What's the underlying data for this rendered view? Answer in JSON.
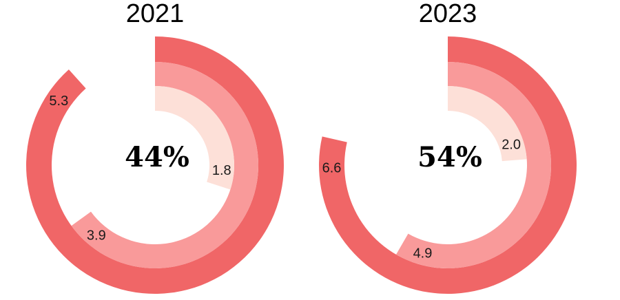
{
  "chart_data": [
    {
      "type": "radial-bar",
      "title": "2021",
      "center_label": "44%",
      "max_value": 6.0,
      "rings": [
        {
          "value": 5.3,
          "label": "5.3",
          "color": "#f06667"
        },
        {
          "value": 3.9,
          "label": "3.9",
          "color": "#f99a9a"
        },
        {
          "value": 1.8,
          "label": "1.8",
          "color": "#fde0d8"
        }
      ]
    },
    {
      "type": "radial-bar",
      "title": "2023",
      "center_label": "54%",
      "max_value": 8.4,
      "rings": [
        {
          "value": 6.6,
          "label": "6.6",
          "color": "#f06667"
        },
        {
          "value": 4.9,
          "label": "4.9",
          "color": "#f99a9a"
        },
        {
          "value": 2.0,
          "label": "2.0",
          "color": "#fde0d8"
        }
      ]
    }
  ]
}
